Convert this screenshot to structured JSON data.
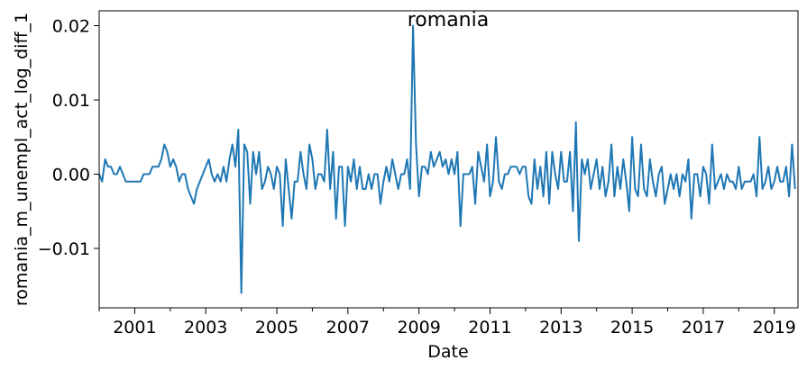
{
  "chart_data": {
    "type": "line",
    "title": "romania",
    "xlabel": "Date",
    "ylabel": "romania_m_unempl_act_log_diff_1",
    "x_start": "2000-01",
    "x_end": "2019-09",
    "frequency": "monthly",
    "xlim": [
      "2000-01",
      "2019-09"
    ],
    "ylim": [
      -0.018,
      0.022
    ],
    "x_major_ticks": [
      "2001",
      "2003",
      "2005",
      "2007",
      "2009",
      "2011",
      "2013",
      "2015",
      "2017",
      "2019"
    ],
    "x_minor_ticks": [
      "2000",
      "2002",
      "2004",
      "2006",
      "2008",
      "2010",
      "2012",
      "2014",
      "2016",
      "2018"
    ],
    "y_ticks": [
      {
        "value": 0.02,
        "label": "0.02"
      },
      {
        "value": 0.01,
        "label": "0.01"
      },
      {
        "value": 0.0,
        "label": "0.00"
      },
      {
        "value": -0.01,
        "label": "−0.01"
      }
    ],
    "grid": false,
    "legend": "none",
    "line_color": "#1f77b4",
    "series": [
      {
        "values": [
          0.0,
          -0.001,
          0.002,
          0.001,
          0.001,
          0.0,
          0.0,
          0.001,
          0.0,
          -0.001,
          -0.001,
          -0.001,
          -0.001,
          -0.001,
          -0.001,
          0.0,
          0.0,
          0.0,
          0.001,
          0.001,
          0.001,
          0.002,
          0.004,
          0.003,
          0.001,
          0.002,
          0.001,
          -0.001,
          0.0,
          0.0,
          -0.002,
          -0.003,
          -0.004,
          -0.002,
          -0.001,
          0.0,
          0.001,
          0.002,
          0.0,
          -0.001,
          0.0,
          -0.001,
          0.001,
          -0.001,
          0.002,
          0.004,
          0.001,
          0.006,
          -0.016,
          0.004,
          0.003,
          -0.004,
          0.003,
          0.0,
          0.003,
          -0.002,
          -0.001,
          0.001,
          0.0,
          -0.002,
          0.001,
          0.0,
          -0.007,
          0.002,
          -0.002,
          -0.006,
          -0.001,
          -0.001,
          0.003,
          0.0,
          -0.002,
          0.004,
          0.002,
          -0.002,
          0.0,
          0.0,
          -0.001,
          0.006,
          -0.002,
          0.003,
          -0.006,
          0.001,
          0.001,
          -0.007,
          0.001,
          -0.001,
          0.002,
          -0.002,
          0.001,
          -0.002,
          -0.002,
          0.0,
          -0.002,
          0.0,
          0.0,
          -0.004,
          -0.001,
          0.001,
          -0.001,
          0.002,
          0.0,
          -0.002,
          0.0,
          0.0,
          0.002,
          -0.002,
          0.02,
          0.004,
          -0.003,
          0.001,
          0.001,
          0.0,
          0.003,
          0.001,
          0.002,
          0.003,
          0.001,
          0.002,
          0.0,
          0.002,
          0.0,
          0.003,
          -0.007,
          0.0,
          0.0,
          0.0,
          0.001,
          -0.004,
          0.003,
          0.001,
          -0.001,
          0.004,
          -0.003,
          -0.001,
          0.005,
          -0.001,
          -0.002,
          0.0,
          0.0,
          0.001,
          0.001,
          0.001,
          0.0,
          0.001,
          0.001,
          -0.003,
          -0.004,
          0.002,
          -0.002,
          0.001,
          -0.003,
          0.003,
          -0.004,
          0.003,
          0.0,
          -0.002,
          0.003,
          -0.001,
          -0.001,
          0.003,
          -0.005,
          0.007,
          -0.009,
          0.002,
          0.0,
          0.002,
          -0.002,
          0.0,
          0.002,
          -0.002,
          0.001,
          -0.003,
          -0.001,
          0.004,
          -0.003,
          0.001,
          -0.002,
          0.002,
          -0.001,
          -0.005,
          0.005,
          -0.002,
          -0.003,
          0.004,
          -0.002,
          -0.003,
          0.002,
          -0.001,
          -0.003,
          0.0,
          0.001,
          -0.004,
          -0.002,
          0.0,
          -0.002,
          0.0,
          -0.003,
          0.0,
          -0.001,
          0.002,
          -0.006,
          0.0,
          0.0,
          -0.003,
          0.001,
          0.0,
          -0.004,
          0.004,
          -0.002,
          -0.001,
          0.0,
          -0.002,
          0.0,
          -0.001,
          -0.001,
          -0.002,
          0.001,
          -0.002,
          -0.001,
          -0.001,
          -0.001,
          0.0,
          -0.003,
          0.005,
          -0.002,
          -0.001,
          0.001,
          -0.002,
          -0.001,
          0.001,
          -0.001,
          -0.001,
          0.001,
          -0.003,
          0.004,
          -0.002
        ]
      }
    ]
  }
}
